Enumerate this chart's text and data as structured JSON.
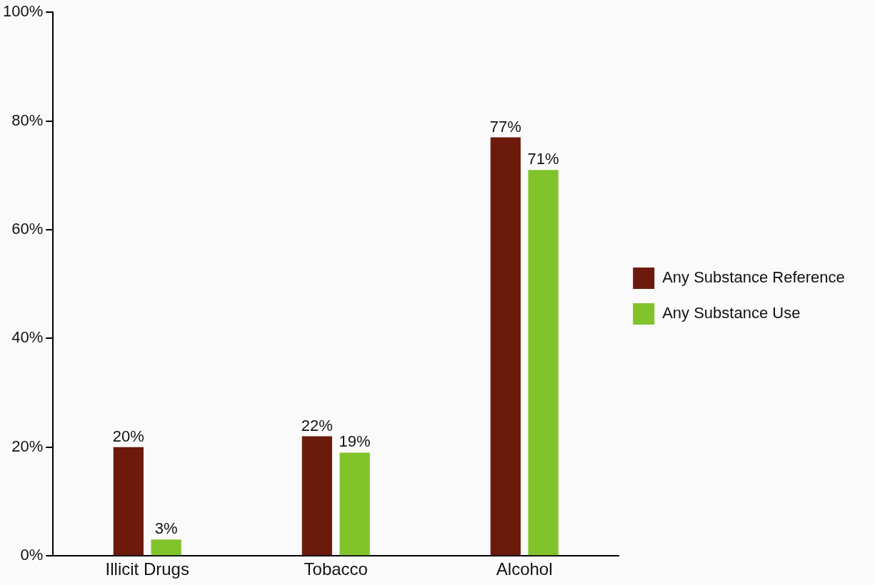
{
  "chart_data": {
    "type": "bar",
    "categories": [
      "Illicit Drugs",
      "Tobacco",
      "Alcohol"
    ],
    "series": [
      {
        "name": "Any Substance Reference",
        "color": "#6b1a0c",
        "values": [
          20,
          22,
          77
        ],
        "value_labels": [
          "20%",
          "22%",
          "77%"
        ]
      },
      {
        "name": "Any Substance Use",
        "color": "#80c32a",
        "values": [
          3,
          19,
          71
        ],
        "value_labels": [
          "3%",
          "19%",
          "71%"
        ]
      }
    ],
    "ylim": [
      0,
      100
    ],
    "yticks": [
      {
        "value": 0,
        "label": "0%"
      },
      {
        "value": 20,
        "label": "20%"
      },
      {
        "value": 40,
        "label": "40%"
      },
      {
        "value": 60,
        "label": "60%"
      },
      {
        "value": 80,
        "label": "80%"
      },
      {
        "value": 100,
        "label": "100%"
      }
    ],
    "grid": false,
    "legend": "right"
  }
}
